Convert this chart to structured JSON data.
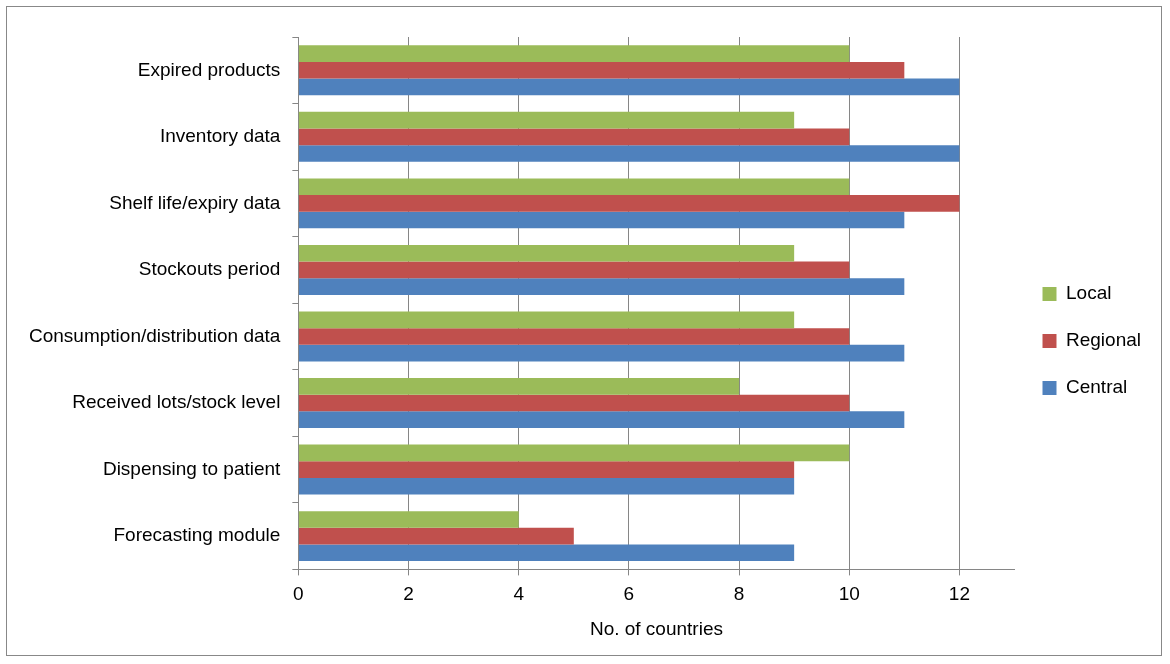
{
  "chart_data": {
    "type": "bar",
    "orientation": "horizontal",
    "xlabel": "No. of countries",
    "categories": [
      "Expired products",
      "Inventory data",
      "Shelf life/expiry data",
      "Stockouts period",
      "Consumption/distribution data",
      "Received lots/stock level",
      "Dispensing to patient",
      "Forecasting module"
    ],
    "series": [
      {
        "name": "Local",
        "color": "#9bbb59",
        "values": [
          10,
          9,
          10,
          9,
          9,
          8,
          10,
          4
        ]
      },
      {
        "name": "Regional",
        "color": "#c0504d",
        "values": [
          11,
          10,
          12,
          10,
          10,
          10,
          9,
          5
        ]
      },
      {
        "name": "Central",
        "color": "#4f81bd",
        "values": [
          12,
          12,
          11,
          11,
          11,
          11,
          9,
          9
        ]
      }
    ],
    "xlim": [
      0,
      13
    ],
    "xticks": [
      0,
      2,
      4,
      6,
      8,
      10,
      12
    ],
    "grid": "x",
    "legend": "right"
  }
}
